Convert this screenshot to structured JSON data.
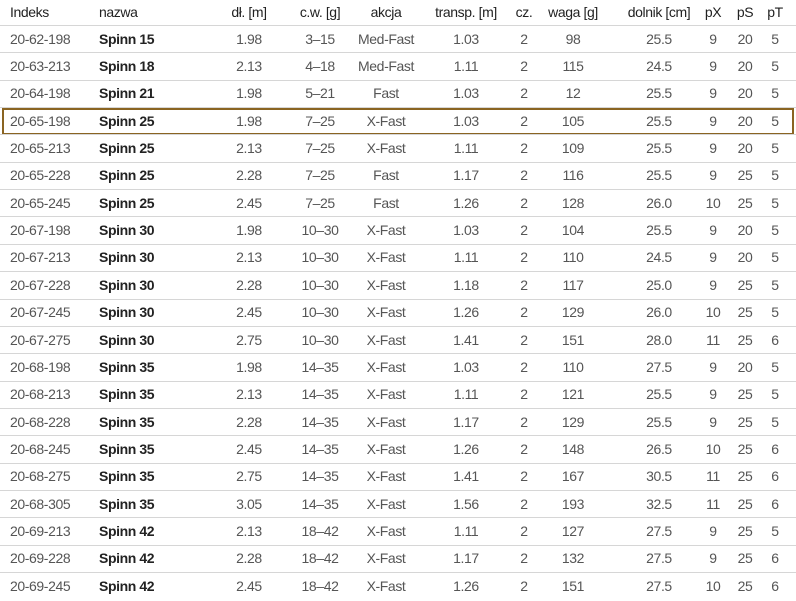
{
  "table": {
    "header": [
      "Indeks",
      "nazwa",
      "dł. [m]",
      "c.w. [g]",
      "akcja",
      "transp. [m]",
      "cz.",
      "waga [g]",
      "dolnik [cm]",
      "pX",
      "pS",
      "pT"
    ],
    "rows": [
      [
        "20-62-198",
        "Spinn 15",
        "1.98",
        "3–15",
        "Med-Fast",
        "1.03",
        "2",
        "98",
        "25.5",
        "9",
        "20",
        "5"
      ],
      [
        "20-63-213",
        "Spinn 18",
        "2.13",
        "4–18",
        "Med-Fast",
        "1.11",
        "2",
        "115",
        "24.5",
        "9",
        "20",
        "5"
      ],
      [
        "20-64-198",
        "Spinn 21",
        "1.98",
        "5–21",
        "Fast",
        "1.03",
        "2",
        "12",
        "25.5",
        "9",
        "20",
        "5"
      ],
      [
        "20-65-198",
        "Spinn 25",
        "1.98",
        "7–25",
        "X-Fast",
        "1.03",
        "2",
        "105",
        "25.5",
        "9",
        "20",
        "5"
      ],
      [
        "20-65-213",
        "Spinn 25",
        "2.13",
        "7–25",
        "X-Fast",
        "1.11",
        "2",
        "109",
        "25.5",
        "9",
        "20",
        "5"
      ],
      [
        "20-65-228",
        "Spinn 25",
        "2.28",
        "7–25",
        "Fast",
        "1.17",
        "2",
        "116",
        "25.5",
        "9",
        "25",
        "5"
      ],
      [
        "20-65-245",
        "Spinn 25",
        "2.45",
        "7–25",
        "Fast",
        "1.26",
        "2",
        "128",
        "26.0",
        "10",
        "25",
        "5"
      ],
      [
        "20-67-198",
        "Spinn 30",
        "1.98",
        "10–30",
        "X-Fast",
        "1.03",
        "2",
        "104",
        "25.5",
        "9",
        "20",
        "5"
      ],
      [
        "20-67-213",
        "Spinn 30",
        "2.13",
        "10–30",
        "X-Fast",
        "1.11",
        "2",
        "110",
        "24.5",
        "9",
        "20",
        "5"
      ],
      [
        "20-67-228",
        "Spinn 30",
        "2.28",
        "10–30",
        "X-Fast",
        "1.18",
        "2",
        "117",
        "25.0",
        "9",
        "25",
        "5"
      ],
      [
        "20-67-245",
        "Spinn 30",
        "2.45",
        "10–30",
        "X-Fast",
        "1.26",
        "2",
        "129",
        "26.0",
        "10",
        "25",
        "5"
      ],
      [
        "20-67-275",
        "Spinn 30",
        "2.75",
        "10–30",
        "X-Fast",
        "1.41",
        "2",
        "151",
        "28.0",
        "11",
        "25",
        "6"
      ],
      [
        "20-68-198",
        "Spinn 35",
        "1.98",
        "14–35",
        "X-Fast",
        "1.03",
        "2",
        "110",
        "27.5",
        "9",
        "20",
        "5"
      ],
      [
        "20-68-213",
        "Spinn 35",
        "2.13",
        "14–35",
        "X-Fast",
        "1.11",
        "2",
        "121",
        "25.5",
        "9",
        "25",
        "5"
      ],
      [
        "20-68-228",
        "Spinn 35",
        "2.28",
        "14–35",
        "X-Fast",
        "1.17",
        "2",
        "129",
        "25.5",
        "9",
        "25",
        "5"
      ],
      [
        "20-68-245",
        "Spinn 35",
        "2.45",
        "14–35",
        "X-Fast",
        "1.26",
        "2",
        "148",
        "26.5",
        "10",
        "25",
        "6"
      ],
      [
        "20-68-275",
        "Spinn 35",
        "2.75",
        "14–35",
        "X-Fast",
        "1.41",
        "2",
        "167",
        "30.5",
        "11",
        "25",
        "6"
      ],
      [
        "20-68-305",
        "Spinn 35",
        "3.05",
        "14–35",
        "X-Fast",
        "1.56",
        "2",
        "193",
        "32.5",
        "11",
        "25",
        "6"
      ],
      [
        "20-69-213",
        "Spinn 42",
        "2.13",
        "18–42",
        "X-Fast",
        "1.11",
        "2",
        "127",
        "27.5",
        "9",
        "25",
        "5"
      ],
      [
        "20-69-228",
        "Spinn 42",
        "2.28",
        "18–42",
        "X-Fast",
        "1.17",
        "2",
        "132",
        "27.5",
        "9",
        "25",
        "6"
      ],
      [
        "20-69-245",
        "Spinn 42",
        "2.45",
        "18–42",
        "X-Fast",
        "1.26",
        "2",
        "151",
        "27.5",
        "10",
        "25",
        "6"
      ]
    ]
  }
}
